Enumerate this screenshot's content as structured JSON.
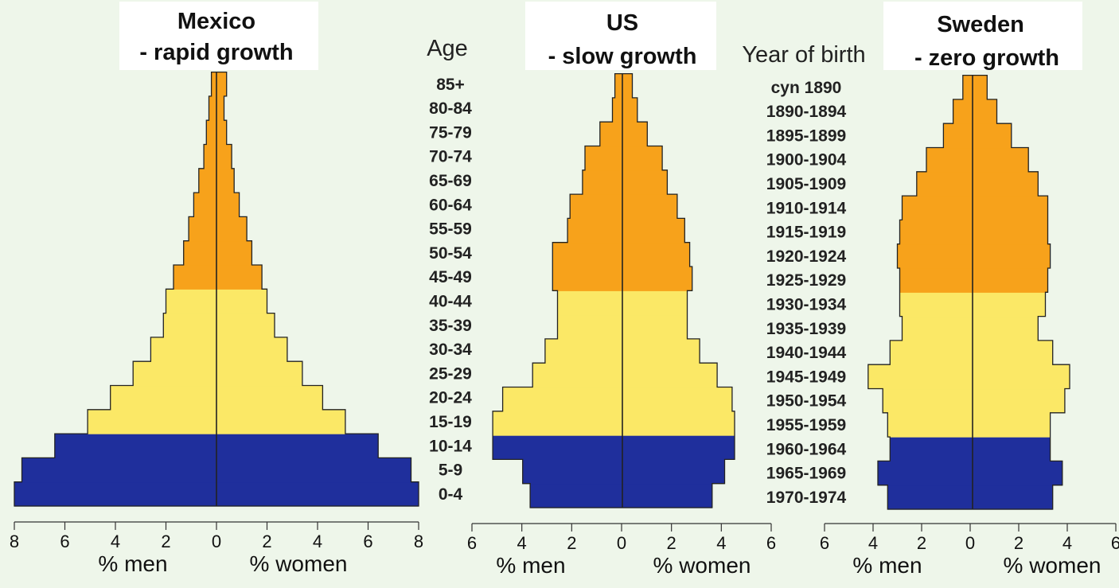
{
  "chart_data": [
    {
      "type": "bar",
      "title": "Mexico",
      "subtitle": "- rapid growth",
      "xlabel_left": "% men",
      "xlabel_right": "% women",
      "xlim": [
        -8,
        8
      ],
      "ticks": [
        "8",
        "6",
        "4",
        "2",
        "0",
        "2",
        "4",
        "6",
        "8"
      ],
      "categories": [
        "0-4",
        "5-9",
        "10-14",
        "15-19",
        "20-24",
        "25-29",
        "30-34",
        "35-39",
        "40-44",
        "45-49",
        "50-54",
        "55-59",
        "60-64",
        "65-69",
        "70-74",
        "75-79",
        "80-84",
        "85+"
      ],
      "series": [
        {
          "name": "% men",
          "values": [
            8.0,
            7.7,
            6.4,
            5.1,
            4.2,
            3.3,
            2.6,
            2.1,
            2.0,
            1.7,
            1.3,
            1.1,
            0.9,
            0.7,
            0.5,
            0.4,
            0.3,
            0.2
          ]
        },
        {
          "name": "% women",
          "values": [
            8.0,
            7.7,
            6.4,
            5.1,
            4.2,
            3.4,
            2.8,
            2.3,
            2.0,
            1.8,
            1.4,
            1.2,
            0.9,
            0.7,
            0.6,
            0.4,
            0.3,
            0.4
          ]
        }
      ],
      "band_colors": [
        "#1f2f9c",
        "#1f2f9c",
        "#1f2f9c",
        "#fbe866",
        "#fbe866",
        "#fbe866",
        "#fbe866",
        "#fbe866",
        "#fbe866",
        "#f7a21b",
        "#f7a21b",
        "#f7a21b",
        "#f7a21b",
        "#f7a21b",
        "#f7a21b",
        "#f7a21b",
        "#f7a21b",
        "#f7a21b"
      ]
    },
    {
      "type": "bar",
      "title": "US",
      "subtitle": "- slow growth",
      "xlabel_left": "% men",
      "xlabel_right": "% women",
      "xlim": [
        -6,
        6
      ],
      "ticks": [
        "6",
        "4",
        "2",
        "0",
        "2",
        "4",
        "6"
      ],
      "categories": [
        "0-4",
        "5-9",
        "10-14",
        "15-19",
        "20-24",
        "25-29",
        "30-34",
        "35-39",
        "40-44",
        "45-49",
        "50-54",
        "55-59",
        "60-64",
        "65-69",
        "70-74",
        "75-79",
        "80-84",
        "85+"
      ],
      "series": [
        {
          "name": "% men",
          "values": [
            3.7,
            4.0,
            5.2,
            5.2,
            4.8,
            3.6,
            3.1,
            2.6,
            2.6,
            2.8,
            2.8,
            2.2,
            2.1,
            1.6,
            1.5,
            0.9,
            0.4,
            0.3
          ]
        },
        {
          "name": "% women",
          "values": [
            3.6,
            4.1,
            4.5,
            4.5,
            4.4,
            3.8,
            3.1,
            2.6,
            2.6,
            2.8,
            2.7,
            2.5,
            2.2,
            1.8,
            1.6,
            1.0,
            0.6,
            0.4
          ]
        }
      ],
      "band_colors": [
        "#1f2f9c",
        "#1f2f9c",
        "#1f2f9c",
        "#fbe866",
        "#fbe866",
        "#fbe866",
        "#fbe866",
        "#fbe866",
        "#fbe866",
        "#f7a21b",
        "#f7a21b",
        "#f7a21b",
        "#f7a21b",
        "#f7a21b",
        "#f7a21b",
        "#f7a21b",
        "#f7a21b",
        "#f7a21b"
      ]
    },
    {
      "type": "bar",
      "title": "Sweden",
      "subtitle": "- zero growth",
      "xlabel_left": "% men",
      "xlabel_right": "% women",
      "xlim": [
        -6,
        6
      ],
      "ticks": [
        "6",
        "4",
        "2",
        "0",
        "2",
        "4",
        "6"
      ],
      "categories": [
        "1970-1974",
        "1965-1969",
        "1960-1964",
        "1955-1959",
        "1950-1954",
        "1945-1949",
        "1940-1944",
        "1935-1939",
        "1930-1934",
        "1925-1929",
        "1920-1924",
        "1915-1919",
        "1910-1914",
        "1905-1909",
        "1900-1904",
        "1895-1899",
        "1890-1894",
        "cyn 1890"
      ],
      "series": [
        {
          "name": "% men",
          "values": [
            3.5,
            3.9,
            3.4,
            3.5,
            3.7,
            4.3,
            3.4,
            2.9,
            3.0,
            3.0,
            3.1,
            3.0,
            2.9,
            2.3,
            1.9,
            1.2,
            0.8,
            0.4
          ]
        },
        {
          "name": "% women",
          "values": [
            3.3,
            3.7,
            3.2,
            3.2,
            3.8,
            4.0,
            3.3,
            2.7,
            3.0,
            3.1,
            3.2,
            3.1,
            3.1,
            2.7,
            2.3,
            1.6,
            1.0,
            0.6
          ]
        }
      ],
      "band_colors": [
        "#1f2f9c",
        "#1f2f9c",
        "#1f2f9c",
        "#fbe866",
        "#fbe866",
        "#fbe866",
        "#fbe866",
        "#fbe866",
        "#fbe866",
        "#f7a21b",
        "#f7a21b",
        "#f7a21b",
        "#f7a21b",
        "#f7a21b",
        "#f7a21b",
        "#f7a21b",
        "#f7a21b",
        "#f7a21b"
      ]
    }
  ],
  "center_labels": {
    "age_header": "Age",
    "ages": [
      "0-4",
      "5-9",
      "10-14",
      "15-19",
      "20-24",
      "25-29",
      "30-34",
      "35-39",
      "40-44",
      "45-49",
      "50-54",
      "55-59",
      "60-64",
      "65-69",
      "70-74",
      "75-79",
      "80-84",
      "85+"
    ],
    "birth_header": "Year of birth",
    "years": [
      "1970-1974",
      "1965-1969",
      "1960-1964",
      "1955-1959",
      "1950-1954",
      "1945-1949",
      "1940-1944",
      "1935-1939",
      "1930-1934",
      "1925-1929",
      "1920-1924",
      "1915-1919",
      "1910-1914",
      "1905-1909",
      "1900-1904",
      "1895-1899",
      "1890-1894",
      "cyn 1890"
    ]
  },
  "colors": {
    "young": "#1f2f9c",
    "middle": "#fbe866",
    "old": "#f7a21b",
    "outline": "#222222",
    "background": "#eef6ea"
  }
}
